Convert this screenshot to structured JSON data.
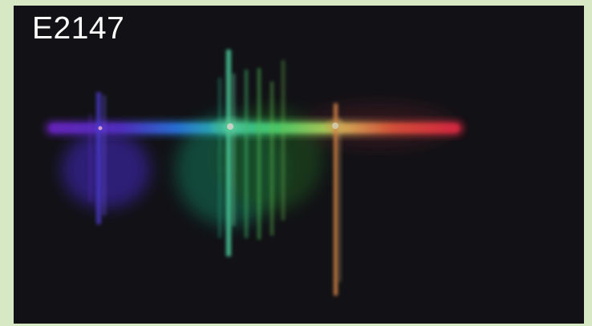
{
  "image": {
    "label": "E2147",
    "subject": "spectrum-photo",
    "colors": {
      "background": "#16161b",
      "frame": "#d7e9c4",
      "violet": "#6f39d7",
      "blue": "#2a7df2",
      "cyan": "#37d3c8",
      "green": "#55f47a",
      "yellow": "#ffe07a",
      "orange": "#ff9a3c",
      "red": "#ff3a4b"
    }
  }
}
